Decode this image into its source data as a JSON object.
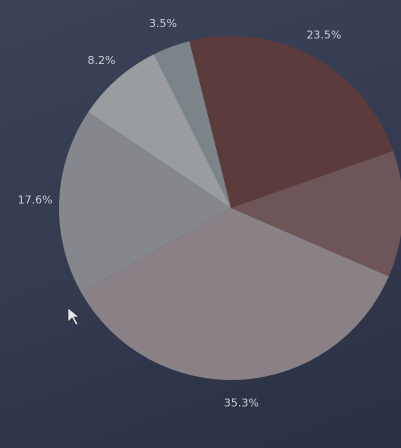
{
  "chart_data": {
    "type": "pie",
    "values": [
      23.5,
      11.9,
      35.3,
      17.6,
      8.2,
      3.5
    ],
    "value_labels": [
      "23.5%",
      null,
      "35.3%",
      "17.6%",
      "8.2%",
      "3.5%"
    ],
    "colors": [
      "#5b3b3c",
      "#6e5658",
      "#8a8187",
      "#85878d",
      "#9a9d9f",
      "#7b8489"
    ]
  }
}
